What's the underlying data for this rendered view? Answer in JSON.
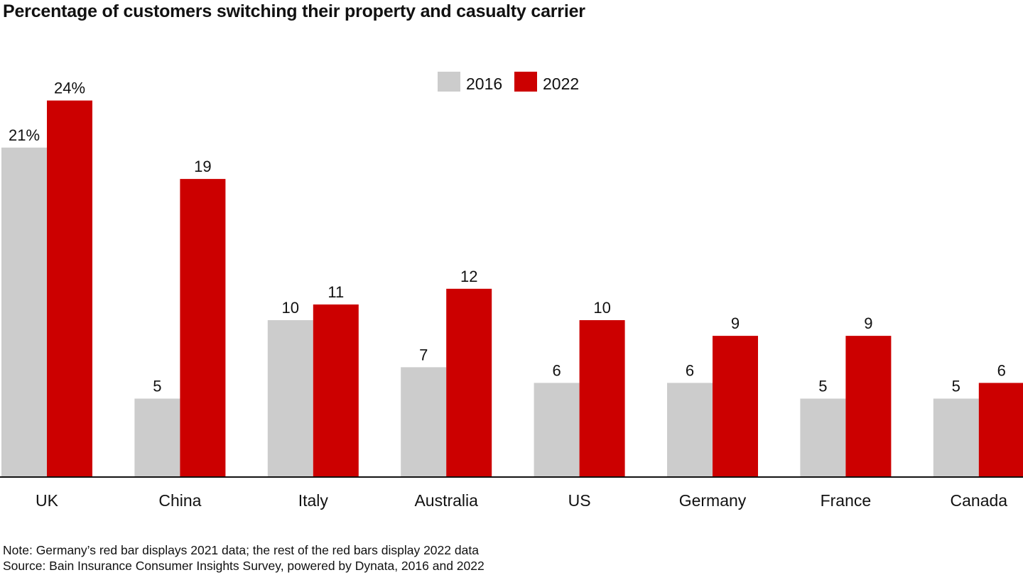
{
  "chart_data": {
    "type": "bar",
    "title": "Percentage of customers switching their property and casualty carrier",
    "xlabel": "",
    "ylabel": "",
    "ylim": [
      0,
      26
    ],
    "grid": false,
    "legend_position": "top-center",
    "categories": [
      "UK",
      "China",
      "Italy",
      "Australia",
      "US",
      "Germany",
      "France",
      "Canada"
    ],
    "series": [
      {
        "name": "2016",
        "color": "#cccccc",
        "values": [
          21,
          5,
          10,
          7,
          6,
          6,
          5,
          5
        ],
        "labels": [
          "21%",
          "5",
          "10",
          "7",
          "6",
          "6",
          "5",
          "5"
        ]
      },
      {
        "name": "2022",
        "color": "#cc0000",
        "values": [
          24,
          19,
          11,
          12,
          10,
          9,
          9,
          6
        ],
        "labels": [
          "24%",
          "19",
          "11",
          "12",
          "10",
          "9",
          "9",
          "6"
        ]
      }
    ]
  },
  "notes": {
    "note": "Note: Germany’s red bar displays 2021 data; the rest of the red bars display 2022 data",
    "source": "Source: Bain Insurance Consumer Insights Survey, powered by Dynata, 2016 and 2022"
  },
  "colors": {
    "axis": "#111111"
  }
}
